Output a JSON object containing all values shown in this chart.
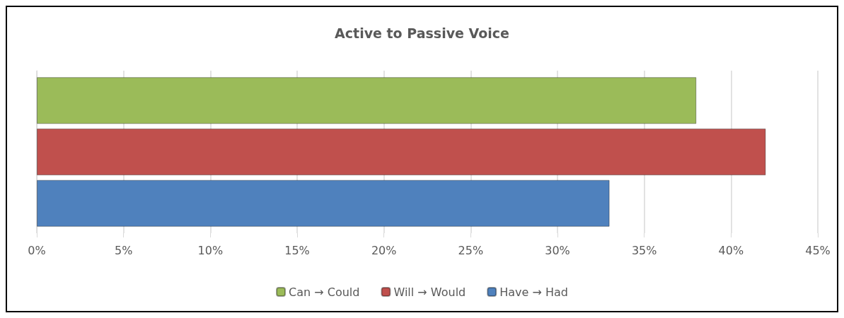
{
  "chart_data": {
    "type": "bar",
    "orientation": "horizontal",
    "title": "Active to Passive Voice",
    "categories": [
      null
    ],
    "series": [
      {
        "name": "Can → Could",
        "color": "#9bbb59",
        "values": [
          38
        ]
      },
      {
        "name": "Will → Would",
        "color": "#c0504d",
        "values": [
          42
        ]
      },
      {
        "name": "Have → Had",
        "color": "#4f81bd",
        "values": [
          33
        ]
      }
    ],
    "xlim": [
      0,
      45
    ],
    "xticks": [
      {
        "value": 0,
        "label": "0%"
      },
      {
        "value": 5,
        "label": "5%"
      },
      {
        "value": 10,
        "label": "10%"
      },
      {
        "value": 15,
        "label": "15%"
      },
      {
        "value": 20,
        "label": "20%"
      },
      {
        "value": 25,
        "label": "25%"
      },
      {
        "value": 30,
        "label": "30%"
      },
      {
        "value": 35,
        "label": "35%"
      },
      {
        "value": 40,
        "label": "40%"
      },
      {
        "value": 45,
        "label": "45%"
      }
    ],
    "grid": "x",
    "legend": "bottom"
  }
}
